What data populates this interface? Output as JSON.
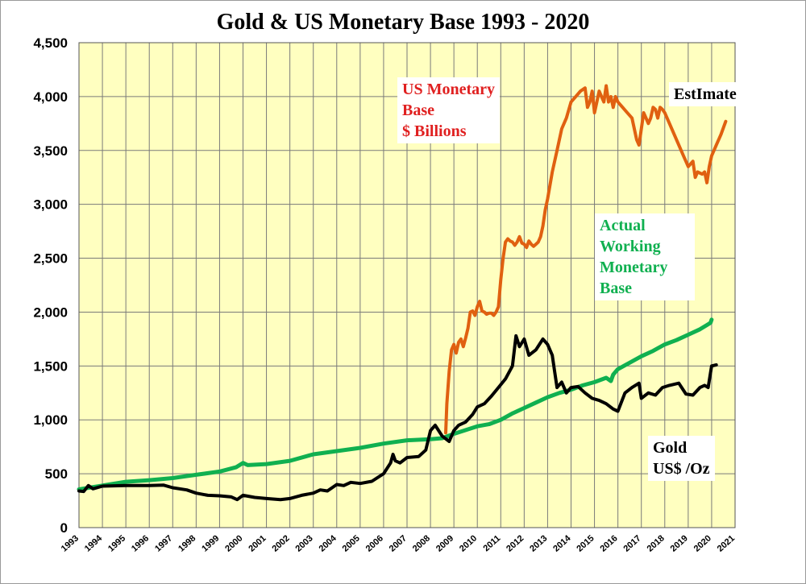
{
  "chart_data": {
    "type": "line",
    "title": "Gold & US Monetary Base 1993 - 2020",
    "xlabel": "",
    "ylabel": "",
    "xlim": [
      1993,
      2021
    ],
    "ylim": [
      0,
      4500
    ],
    "y_ticks": [
      0,
      500,
      1000,
      1500,
      2000,
      2500,
      3000,
      3500,
      4000,
      4500
    ],
    "y_tick_labels": [
      "0",
      "500",
      "1,000",
      "1,500",
      "2,000",
      "2,500",
      "3,000",
      "3,500",
      "4,000",
      "4,500"
    ],
    "x_tick_labels": [
      "1993",
      "1994",
      "1995",
      "1996",
      "1997",
      "1998",
      "1999",
      "2000",
      "2001",
      "2002",
      "2003",
      "2004",
      "2005",
      "2006",
      "2007",
      "2008",
      "2009",
      "2010",
      "2011",
      "2012",
      "2013",
      "2014",
      "2015",
      "2016",
      "2017",
      "2018",
      "2019",
      "2020",
      "2021"
    ],
    "grid": true,
    "colors": {
      "plot_bg": "#ffffc0",
      "grid": "#7a7a7a",
      "base": "#e06010",
      "working": "#10b050",
      "gold": "#000000"
    },
    "annotations": {
      "base_label": [
        "US Monetary",
        "Base",
        "$ Billions"
      ],
      "working_label": [
        "Actual",
        "Working",
        "Monetary",
        "Base"
      ],
      "estimate_label": "EstImate",
      "gold_label": [
        "Gold",
        "US$ /Oz"
      ]
    },
    "series": [
      {
        "key": "base",
        "x": [
          2008.65,
          2008.7,
          2008.8,
          2008.9,
          2009.0,
          2009.1,
          2009.2,
          2009.3,
          2009.4,
          2009.5,
          2009.6,
          2009.7,
          2009.8,
          2009.9,
          2010.0,
          2010.1,
          2010.2,
          2010.3,
          2010.4,
          2010.5,
          2010.6,
          2010.7,
          2010.8,
          2010.9,
          2011.0,
          2011.1,
          2011.2,
          2011.3,
          2011.4,
          2011.5,
          2011.6,
          2011.7,
          2011.8,
          2011.9,
          2012.0,
          2012.1,
          2012.2,
          2012.3,
          2012.4,
          2012.5,
          2012.6,
          2012.7,
          2012.8,
          2012.9,
          2013.0,
          2013.2,
          2013.4,
          2013.6,
          2013.8,
          2014.0,
          2014.2,
          2014.4,
          2014.6,
          2014.7,
          2014.8,
          2014.9,
          2015.0,
          2015.1,
          2015.2,
          2015.3,
          2015.4,
          2015.5,
          2015.6,
          2015.7,
          2015.8,
          2015.9,
          2016.0,
          2016.2,
          2016.4,
          2016.6,
          2016.8,
          2016.9,
          2017.0,
          2017.1,
          2017.2,
          2017.3,
          2017.4,
          2017.5,
          2017.6,
          2017.7,
          2017.8,
          2017.9,
          2018.0,
          2018.2,
          2018.4,
          2018.6,
          2018.8,
          2019.0,
          2019.2,
          2019.3,
          2019.4,
          2019.6,
          2019.7,
          2019.8,
          2019.9,
          2020.0,
          2020.2,
          2020.4,
          2020.6
        ],
        "y": [
          880,
          1150,
          1450,
          1650,
          1700,
          1620,
          1720,
          1750,
          1680,
          1760,
          1850,
          2000,
          2010,
          1970,
          2050,
          2100,
          2010,
          2000,
          1980,
          1990,
          1990,
          1970,
          2000,
          2050,
          2300,
          2500,
          2650,
          2680,
          2660,
          2650,
          2620,
          2650,
          2700,
          2640,
          2630,
          2600,
          2660,
          2630,
          2610,
          2630,
          2650,
          2700,
          2800,
          2950,
          3050,
          3300,
          3500,
          3700,
          3800,
          3950,
          4000,
          4050,
          4080,
          3900,
          3950,
          4050,
          3850,
          3950,
          4050,
          4000,
          3950,
          4100,
          3950,
          4000,
          3900,
          4000,
          3950,
          3900,
          3850,
          3800,
          3600,
          3550,
          3700,
          3850,
          3800,
          3750,
          3800,
          3900,
          3880,
          3800,
          3900,
          3880,
          3850,
          3750,
          3650,
          3550,
          3450,
          3350,
          3400,
          3250,
          3300,
          3280,
          3300,
          3200,
          3350,
          3450,
          3550,
          3650,
          3770
        ]
      },
      {
        "key": "working",
        "x": [
          1993,
          1994,
          1995,
          1996,
          1997,
          1998,
          1999,
          1999.7,
          2000.0,
          2000.2,
          2001,
          2002,
          2003,
          2004,
          2005,
          2006,
          2007,
          2008,
          2008.5,
          2009,
          2010,
          2010.5,
          2011,
          2011.5,
          2012,
          2012.5,
          2013,
          2013.5,
          2014,
          2014.5,
          2015,
          2015.5,
          2015.7,
          2015.8,
          2016,
          2016.5,
          2017,
          2017.5,
          2018,
          2018.5,
          2019,
          2019.5,
          2019.8,
          2019.95,
          2020.0
        ],
        "y": [
          355,
          390,
          425,
          440,
          460,
          490,
          520,
          560,
          600,
          580,
          590,
          620,
          680,
          710,
          740,
          780,
          810,
          820,
          830,
          870,
          940,
          960,
          1000,
          1060,
          1110,
          1160,
          1210,
          1250,
          1280,
          1320,
          1350,
          1390,
          1360,
          1420,
          1470,
          1530,
          1590,
          1640,
          1700,
          1740,
          1790,
          1840,
          1880,
          1900,
          1930
        ]
      },
      {
        "key": "gold",
        "x": [
          1993,
          1993.2,
          1993.4,
          1993.6,
          1994,
          1995,
          1996,
          1996.6,
          1997,
          1997.6,
          1998,
          1998.5,
          1999,
          1999.5,
          1999.75,
          2000,
          2000.5,
          2001,
          2001.6,
          2002,
          2002.5,
          2003,
          2003.3,
          2003.6,
          2004,
          2004.3,
          2004.6,
          2005,
          2005.5,
          2006,
          2006.3,
          2006.4,
          2006.5,
          2006.7,
          2007,
          2007.5,
          2007.8,
          2008,
          2008.2,
          2008.5,
          2008.8,
          2009,
          2009.2,
          2009.5,
          2009.8,
          2010,
          2010.3,
          2010.6,
          2010.9,
          2011.2,
          2011.5,
          2011.65,
          2011.8,
          2012,
          2012.2,
          2012.5,
          2012.8,
          2013,
          2013.2,
          2013.3,
          2013.4,
          2013.6,
          2013.8,
          2014,
          2014.3,
          2014.6,
          2014.9,
          2015.2,
          2015.5,
          2015.8,
          2016,
          2016.3,
          2016.6,
          2016.9,
          2017,
          2017.3,
          2017.6,
          2017.9,
          2018.2,
          2018.6,
          2018.9,
          2019.2,
          2019.5,
          2019.7,
          2019.85,
          2020.0,
          2020.2
        ],
        "y": [
          340,
          335,
          390,
          360,
          385,
          390,
          390,
          395,
          370,
          350,
          320,
          300,
          295,
          285,
          260,
          300,
          280,
          270,
          260,
          270,
          300,
          320,
          350,
          340,
          400,
          390,
          420,
          410,
          430,
          500,
          600,
          680,
          620,
          600,
          650,
          660,
          720,
          900,
          950,
          850,
          800,
          900,
          950,
          980,
          1050,
          1120,
          1150,
          1220,
          1300,
          1380,
          1500,
          1780,
          1680,
          1750,
          1600,
          1650,
          1750,
          1700,
          1600,
          1450,
          1300,
          1350,
          1250,
          1300,
          1310,
          1250,
          1200,
          1180,
          1150,
          1100,
          1080,
          1250,
          1300,
          1340,
          1200,
          1250,
          1230,
          1300,
          1320,
          1340,
          1240,
          1230,
          1300,
          1320,
          1300,
          1500,
          1510
        ]
      }
    ]
  }
}
